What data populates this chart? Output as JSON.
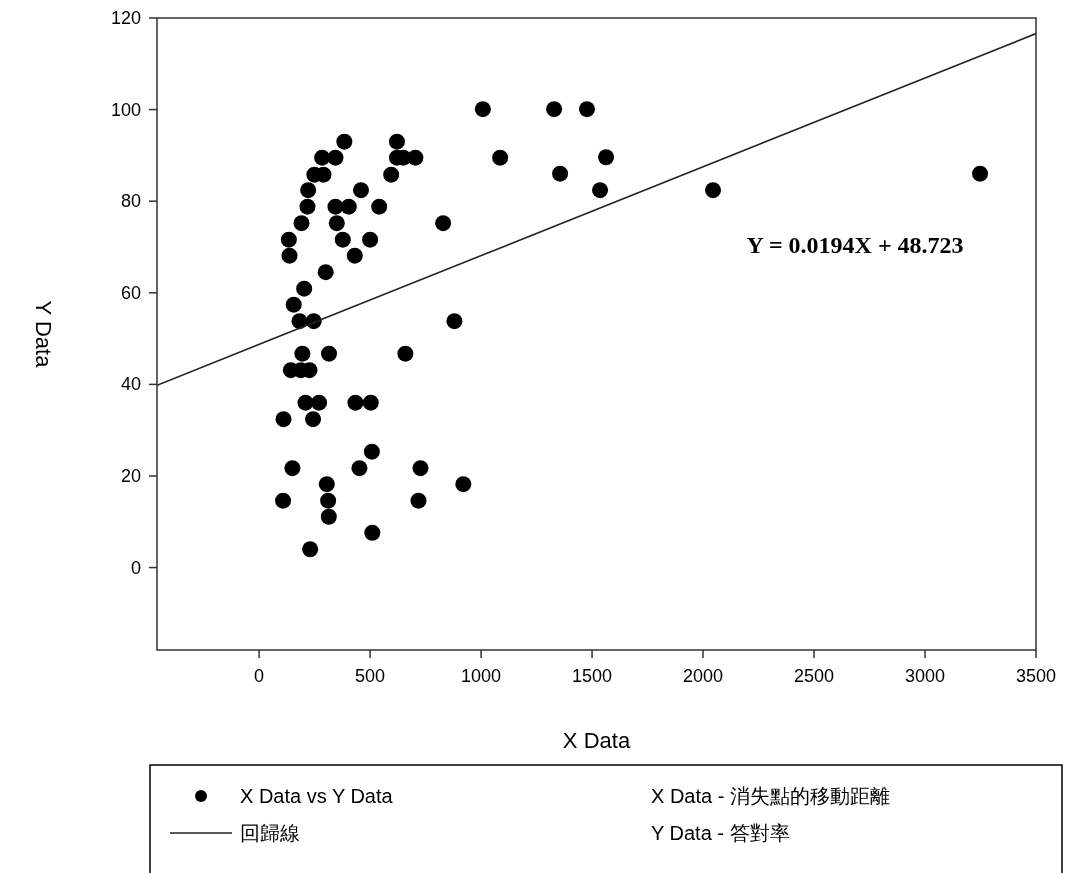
{
  "chart_data": {
    "type": "scatter",
    "xlabel": "X Data",
    "ylabel": "Y Data",
    "xlim": [
      -460,
      3500
    ],
    "xticks": [
      0,
      500,
      1000,
      1500,
      2000,
      2500,
      3000,
      3500
    ],
    "ylim": [
      -18,
      120
    ],
    "yticks": [
      0,
      20,
      40,
      60,
      80,
      100,
      120
    ],
    "grid": false,
    "legend": "bottom",
    "series": [
      {
        "name": "X Data vs Y Data",
        "marker": "circle",
        "color": "#000000",
        "x": [
          384,
          284,
          344,
          249,
          290,
          221,
          218,
          344,
          404,
          459,
          541,
          191,
          350,
          134,
          377,
          500,
          137,
          431,
          300,
          203,
          156,
          182,
          246,
          195,
          315,
          143,
          188,
          227,
          209,
          270,
          434,
          503,
          110,
          243,
          508,
          150,
          452,
          727,
          305,
          108,
          311,
          718,
          314,
          510,
          230,
          595,
          621,
          621,
          650,
          704,
          829,
          880,
          659,
          920,
          1008,
          1086,
          1329,
          1477,
          1356,
          1563,
          1536,
          2045,
          3248
        ],
        "values": [
          93.0,
          89.5,
          89.5,
          85.8,
          85.8,
          82.4,
          78.8,
          78.8,
          78.8,
          82.4,
          78.8,
          75.2,
          75.2,
          71.6,
          71.6,
          71.6,
          68.1,
          68.1,
          64.5,
          60.9,
          57.4,
          53.8,
          53.8,
          46.7,
          46.7,
          43.1,
          43.1,
          43.1,
          36.0,
          36.0,
          36.0,
          36.0,
          32.4,
          32.4,
          25.3,
          21.7,
          21.7,
          21.7,
          18.2,
          14.6,
          14.6,
          14.6,
          11.1,
          7.6,
          4.0,
          85.8,
          93.0,
          89.5,
          89.5,
          89.5,
          75.2,
          53.8,
          46.7,
          18.2,
          100.1,
          89.5,
          100.1,
          100.1,
          86.0,
          89.6,
          82.4,
          82.4,
          86.0
        ]
      },
      {
        "name": "回歸線",
        "type": "line",
        "line_style": "solid",
        "color": "#222222",
        "x": [
          -460,
          3500
        ],
        "values": [
          39.8,
          116.6
        ]
      }
    ],
    "annotations": [
      "Y = 0.0194X + 48.723",
      "X Data - 消失點的移動距離",
      "Y Data - 答對率"
    ]
  }
}
